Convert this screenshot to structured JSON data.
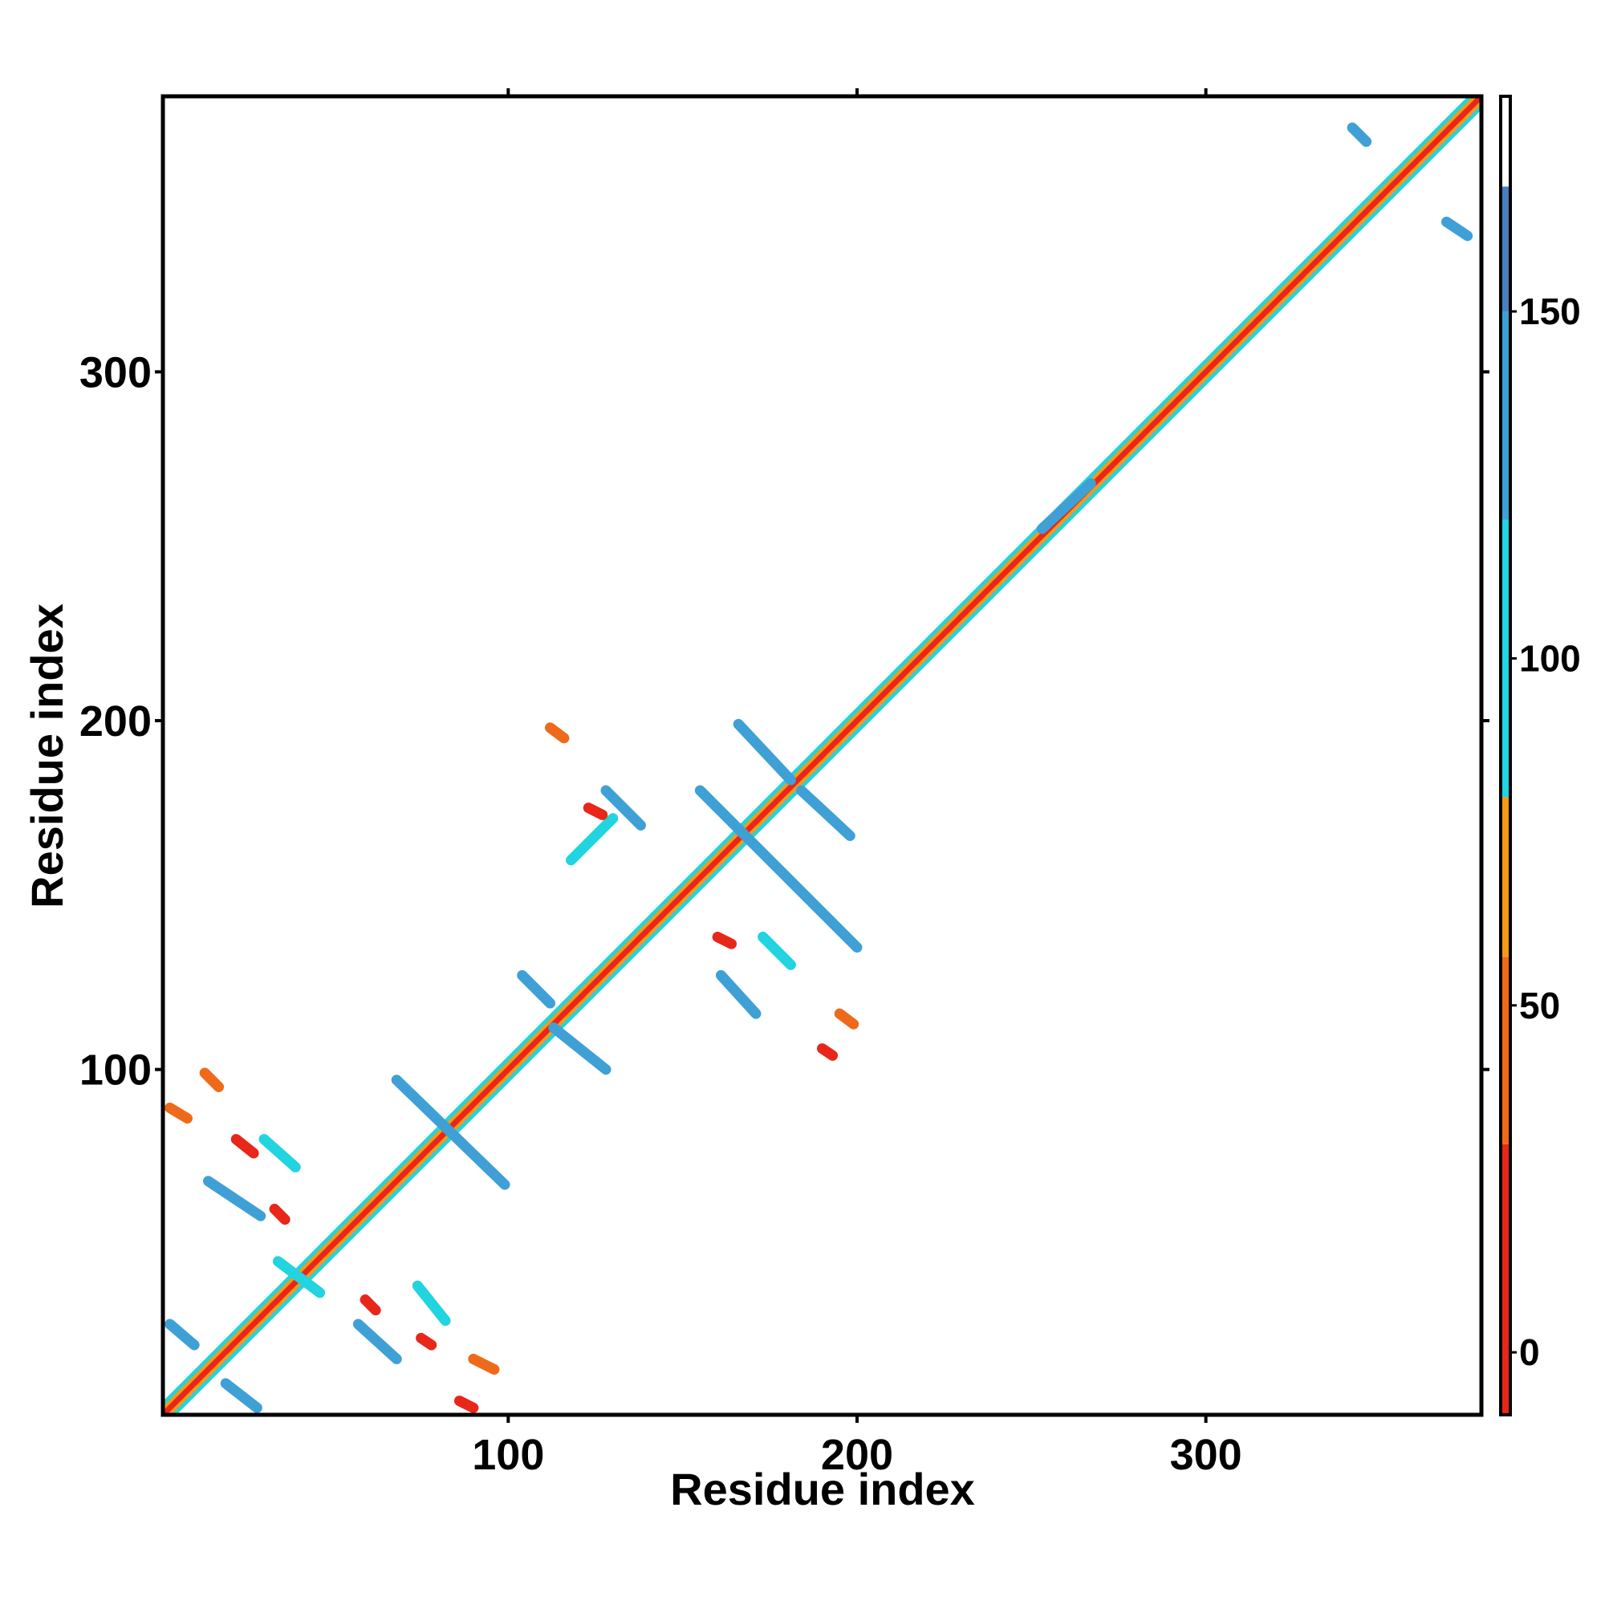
{
  "chart_data": {
    "type": "heatmap",
    "title": "",
    "xlabel": "Residue index",
    "ylabel": "Residue index",
    "xlim": [
      1,
      379
    ],
    "ylim": [
      1,
      379
    ],
    "x_ticks": [
      100,
      200,
      300
    ],
    "y_ticks": [
      100,
      200,
      300
    ],
    "grid": false,
    "legend": "colorbar at right",
    "colorbar": {
      "range": [
        -9,
        181
      ],
      "ticks": [
        0,
        50,
        100,
        150
      ],
      "bands": [
        {
          "from": -9,
          "to": 30,
          "color": "#e8261a"
        },
        {
          "from": 30,
          "to": 57,
          "color": "#ee6a1a"
        },
        {
          "from": 57,
          "to": 80,
          "color": "#f49a17"
        },
        {
          "from": 80,
          "to": 120,
          "color": "#22d3e0"
        },
        {
          "from": 120,
          "to": 150,
          "color": "#3fa0d6"
        },
        {
          "from": 150,
          "to": 168,
          "color": "#4a7fbe"
        },
        {
          "from": 168,
          "to": 181,
          "color": "#ffffff"
        }
      ]
    },
    "diagonal": {
      "from": 1,
      "to": 379,
      "core_color": "#e8261a",
      "side_colors": [
        "#f49a17",
        "#22d3e0"
      ]
    },
    "contacts": [
      {
        "x": [
          155,
          200
        ],
        "y": [
          180,
          135
        ],
        "color": "#3fa0d6"
      },
      {
        "x": [
          166,
          181
        ],
        "y": [
          199,
          183
        ],
        "color": "#3fa0d6"
      },
      {
        "x": [
          184,
          198
        ],
        "y": [
          180,
          167
        ],
        "color": "#3fa0d6"
      },
      {
        "x": [
          118,
          130
        ],
        "y": [
          160,
          172
        ],
        "color": "#22d3e0"
      },
      {
        "x": [
          128,
          138
        ],
        "y": [
          180,
          170
        ],
        "color": "#3fa0d6"
      },
      {
        "x": [
          104,
          112
        ],
        "y": [
          127,
          119
        ],
        "color": "#3fa0d6"
      },
      {
        "x": [
          113,
          128
        ],
        "y": [
          112,
          100
        ],
        "color": "#3fa0d6"
      },
      {
        "x": [
          161,
          171
        ],
        "y": [
          127,
          116
        ],
        "color": "#3fa0d6"
      },
      {
        "x": [
          173,
          181
        ],
        "y": [
          138,
          130
        ],
        "color": "#22d3e0"
      },
      {
        "x": [
          68,
          99
        ],
        "y": [
          97,
          67
        ],
        "color": "#3fa0d6"
      },
      {
        "x": [
          14,
          29
        ],
        "y": [
          68,
          58
        ],
        "color": "#3fa0d6"
      },
      {
        "x": [
          30,
          39
        ],
        "y": [
          80,
          72
        ],
        "color": "#22d3e0"
      },
      {
        "x": [
          57,
          68
        ],
        "y": [
          27,
          17
        ],
        "color": "#3fa0d6"
      },
      {
        "x": [
          74,
          82
        ],
        "y": [
          38,
          28
        ],
        "color": "#22d3e0"
      },
      {
        "x": [
          3,
          10
        ],
        "y": [
          27,
          21
        ],
        "color": "#3fa0d6"
      },
      {
        "x": [
          19,
          28
        ],
        "y": [
          10,
          3
        ],
        "color": "#3fa0d6"
      },
      {
        "x": [
          34,
          46
        ],
        "y": [
          45,
          36
        ],
        "color": "#22d3e0"
      },
      {
        "x": [
          342,
          346
        ],
        "y": [
          370,
          366
        ],
        "color": "#3fa0d6"
      },
      {
        "x": [
          369,
          375
        ],
        "y": [
          343,
          339
        ],
        "color": "#3fa0d6"
      },
      {
        "x": [
          253,
          267
        ],
        "y": [
          255,
          268
        ],
        "color": "#3fa0d6"
      },
      {
        "x": [
          3,
          8
        ],
        "y": [
          89,
          86
        ],
        "color": "#ee6a1a"
      },
      {
        "x": [
          13,
          17
        ],
        "y": [
          99,
          95
        ],
        "color": "#ee6a1a"
      },
      {
        "x": [
          22,
          27
        ],
        "y": [
          80,
          76
        ],
        "color": "#e8261a"
      },
      {
        "x": [
          33,
          36
        ],
        "y": [
          60,
          57
        ],
        "color": "#e8261a"
      },
      {
        "x": [
          90,
          96
        ],
        "y": [
          17,
          14
        ],
        "color": "#ee6a1a"
      },
      {
        "x": [
          86,
          90
        ],
        "y": [
          5,
          3
        ],
        "color": "#e8261a"
      },
      {
        "x": [
          112,
          116
        ],
        "y": [
          198,
          195
        ],
        "color": "#ee6a1a"
      },
      {
        "x": [
          123,
          127
        ],
        "y": [
          175,
          173
        ],
        "color": "#e8261a"
      },
      {
        "x": [
          160,
          164
        ],
        "y": [
          138,
          136
        ],
        "color": "#e8261a"
      },
      {
        "x": [
          195,
          199
        ],
        "y": [
          116,
          113
        ],
        "color": "#ee6a1a"
      },
      {
        "x": [
          190,
          193
        ],
        "y": [
          106,
          104
        ],
        "color": "#e8261a"
      },
      {
        "x": [
          59,
          62
        ],
        "y": [
          34,
          31
        ],
        "color": "#e8261a"
      },
      {
        "x": [
          75,
          78
        ],
        "y": [
          23,
          21
        ],
        "color": "#e8261a"
      }
    ]
  }
}
